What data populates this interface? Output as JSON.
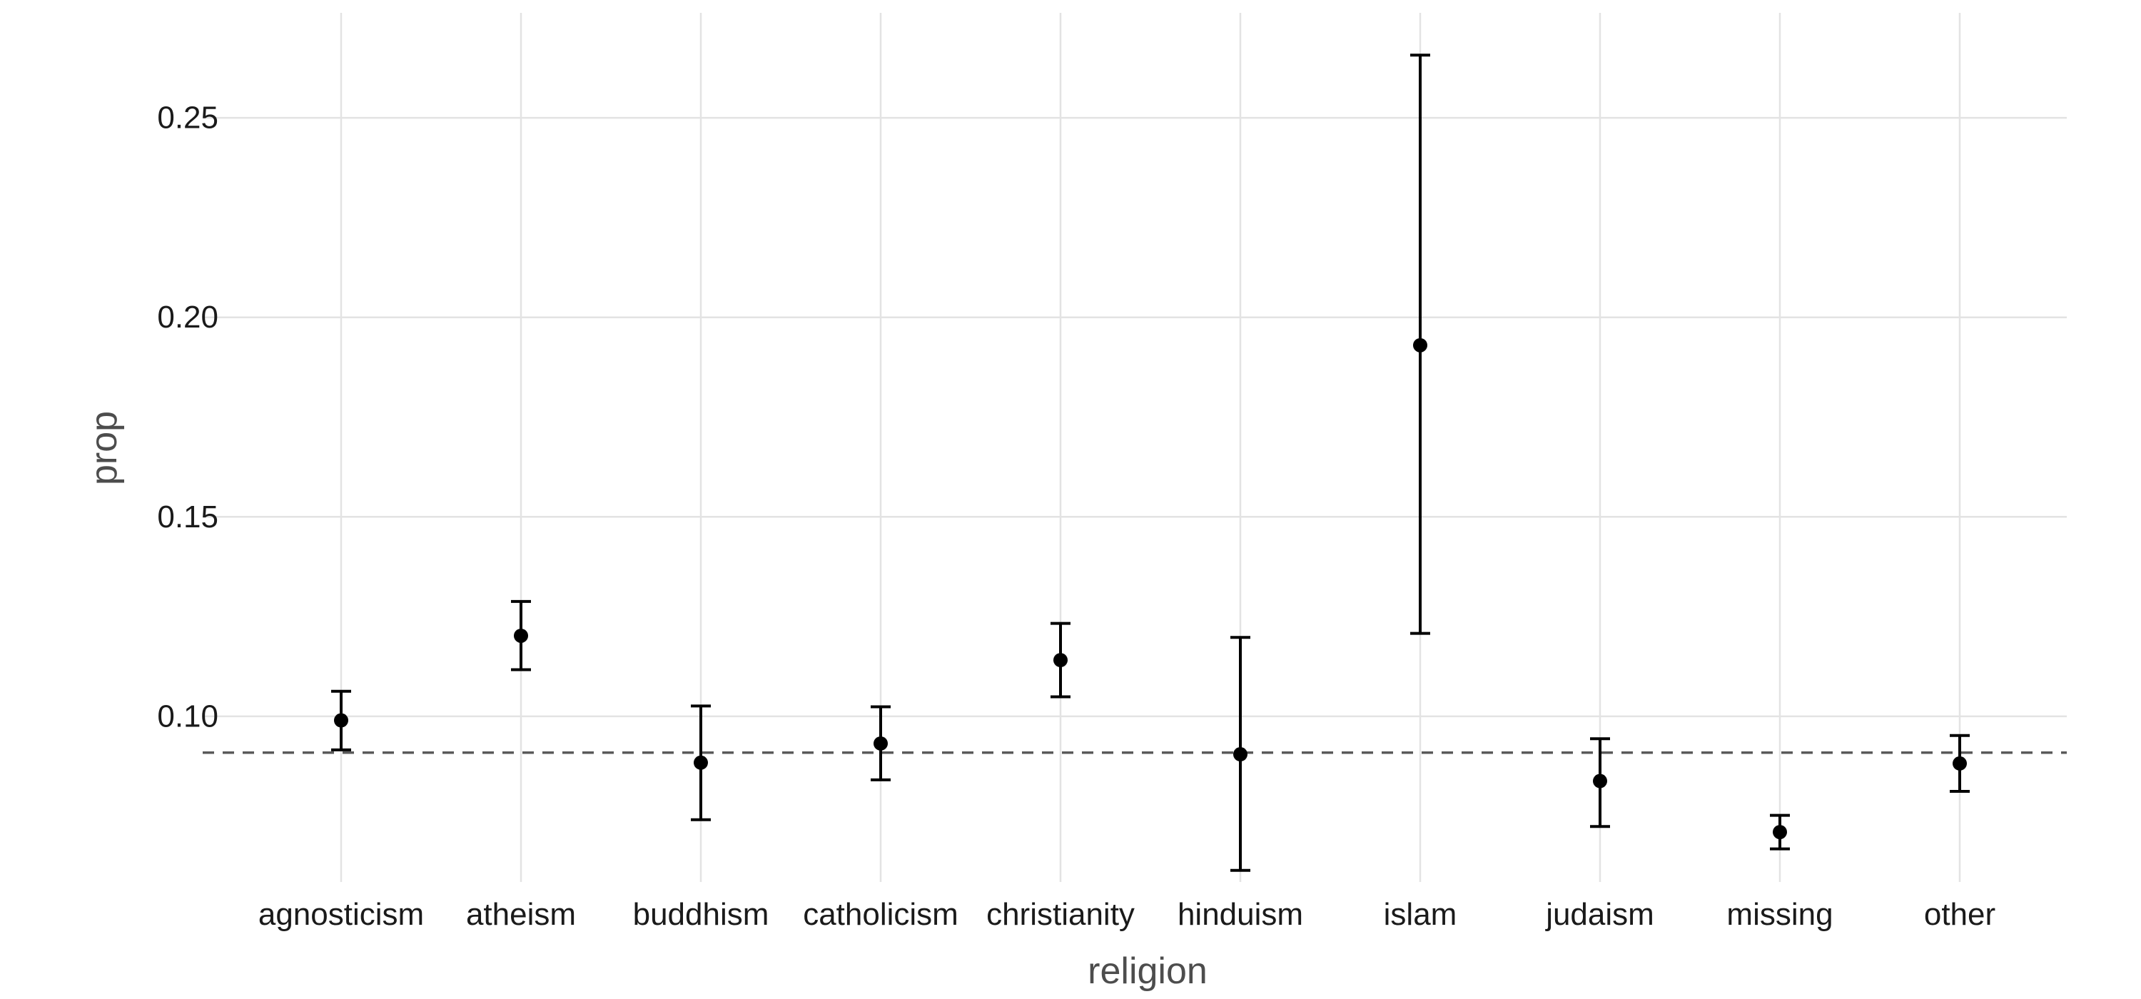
{
  "chart_data": {
    "type": "scatter",
    "xlabel": "religion",
    "ylabel": "prop",
    "categories": [
      "agnosticism",
      "atheism",
      "buddhism",
      "catholicism",
      "christianity",
      "hinduism",
      "islam",
      "judaism",
      "missing",
      "other"
    ],
    "series": [
      {
        "values": [
          0.099,
          0.1202,
          0.0884,
          0.0932,
          0.1141,
          0.0905,
          0.193,
          0.0838,
          0.071,
          0.0882
        ],
        "lower": [
          0.0916,
          0.1117,
          0.0741,
          0.0841,
          0.1049,
          0.0614,
          0.1208,
          0.0724,
          0.0668,
          0.0812
        ],
        "upper": [
          0.1063,
          0.1288,
          0.1026,
          0.1024,
          0.1233,
          0.1198,
          0.2657,
          0.0944,
          0.0752,
          0.0952
        ]
      }
    ],
    "reference_line": {
      "y": 0.0909,
      "style": "dashed"
    },
    "yticks": [
      "0.10",
      "0.15",
      "0.20",
      "0.25"
    ],
    "ylim": [
      0.0585,
      0.2763
    ],
    "grid": true
  }
}
